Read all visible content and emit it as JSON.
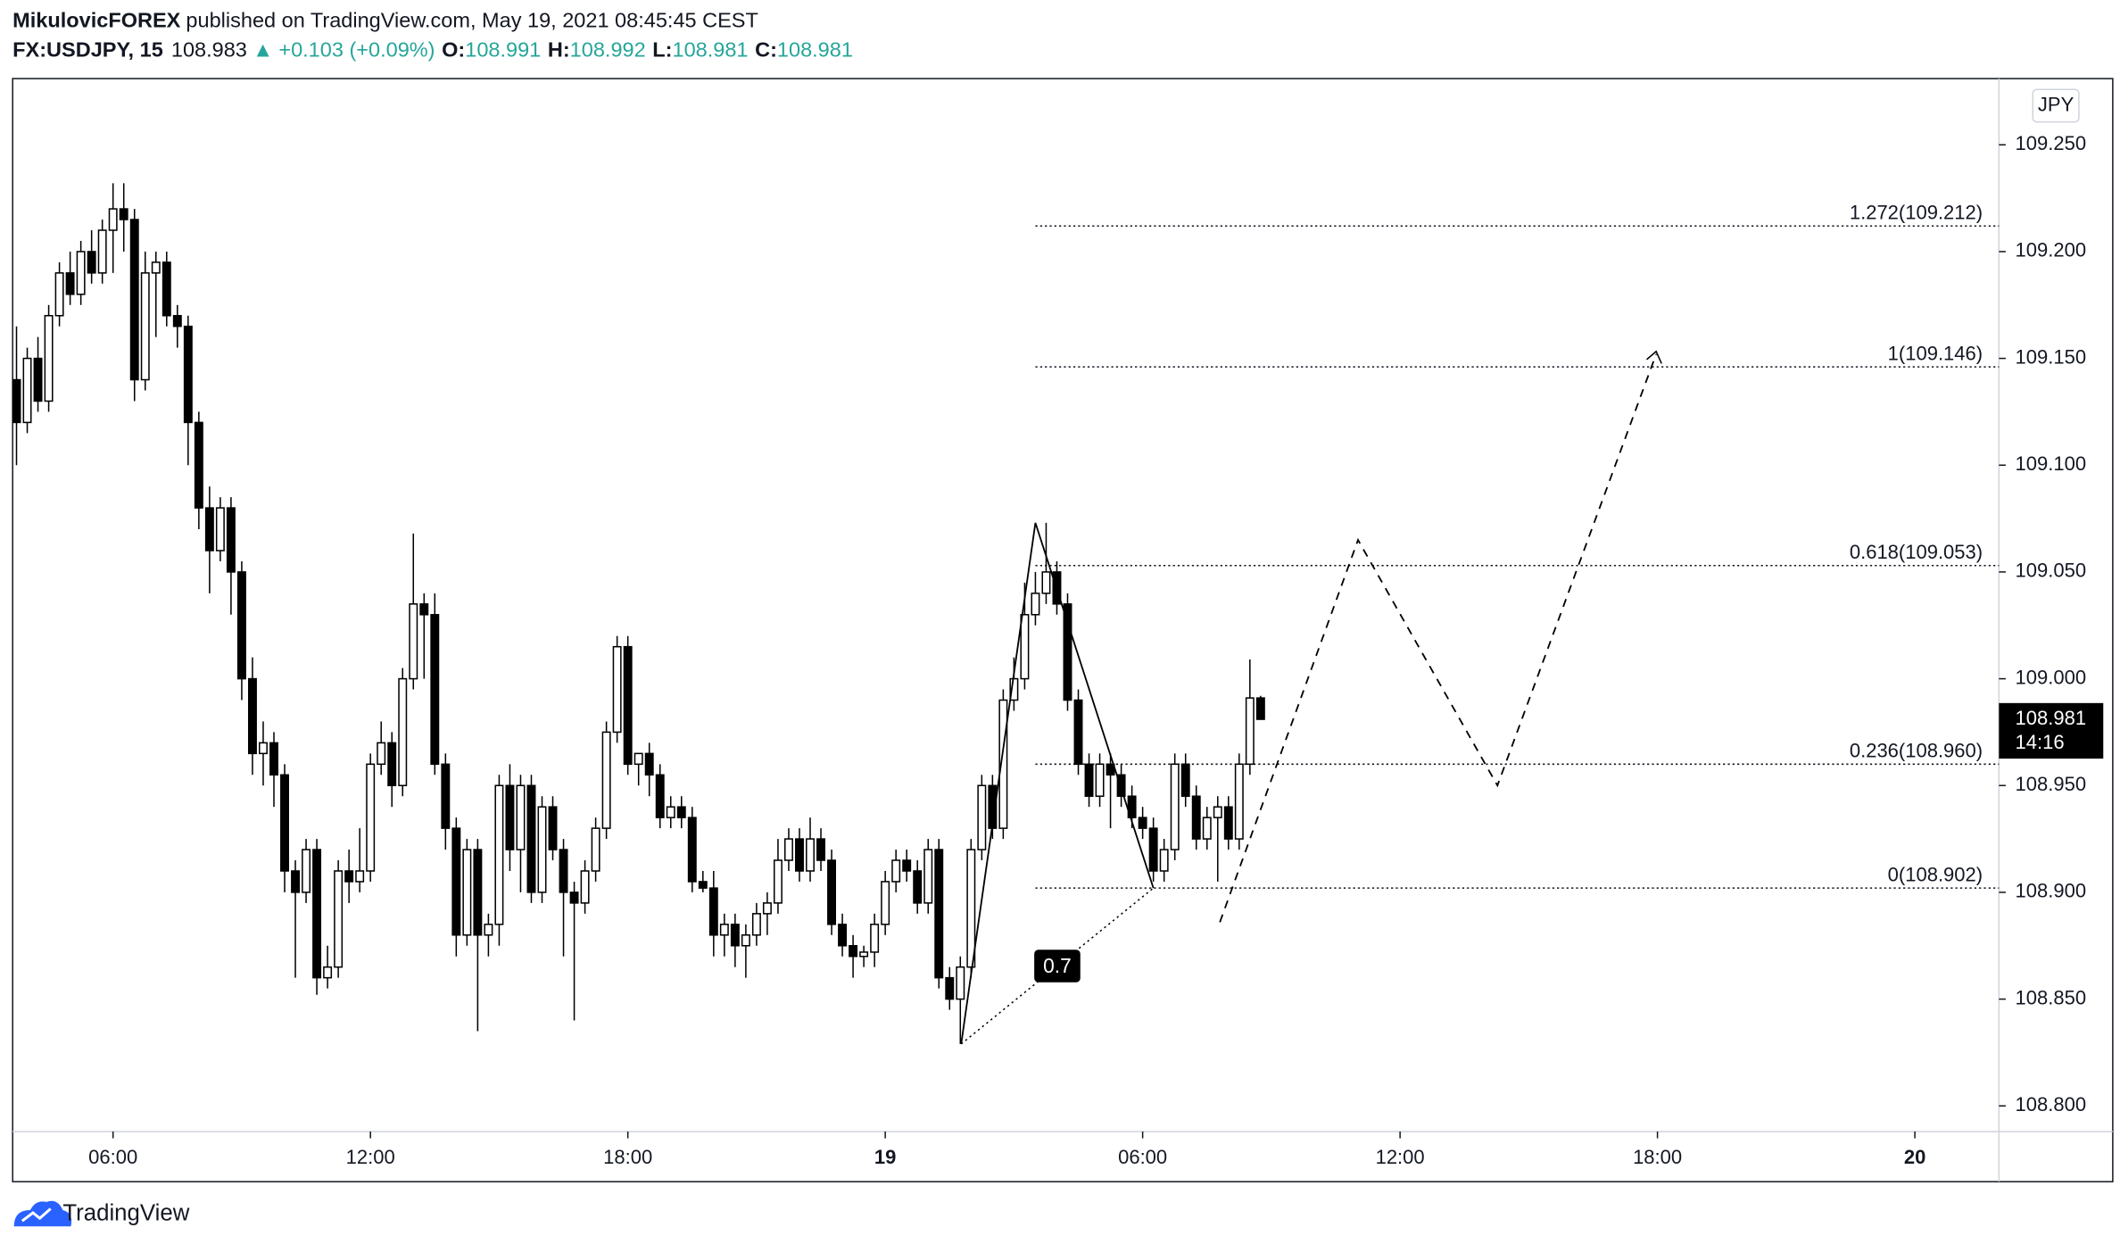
{
  "header": {
    "author": "MikulovicFOREX",
    "published": "published on TradingView.com, May 19, 2021 08:45:45 CEST",
    "symbol": "FX:USDJPY, 15",
    "price": "108.983",
    "arrow": "▲",
    "change": "+0.103 (+0.09%)",
    "ohlc": [
      {
        "label": "O:",
        "value": "108.991"
      },
      {
        "label": "H:",
        "value": "108.992"
      },
      {
        "label": "L:",
        "value": "108.981"
      },
      {
        "label": "C:",
        "value": "108.981"
      }
    ]
  },
  "chart_data": {
    "type": "candlestick",
    "currency": "JPY",
    "footer": "TradingView",
    "xlim": [
      3.66,
      49.96
    ],
    "ylim": [
      108.788,
      109.281
    ],
    "xticks": [
      {
        "value": 6,
        "label": "06:00"
      },
      {
        "value": 12,
        "label": "12:00"
      },
      {
        "value": 18,
        "label": "18:00"
      },
      {
        "value": 24,
        "label": "19"
      },
      {
        "value": 30,
        "label": "06:00"
      },
      {
        "value": 36,
        "label": "12:00"
      },
      {
        "value": 42,
        "label": "18:00"
      },
      {
        "value": 48,
        "label": "20"
      }
    ],
    "yticks": [
      {
        "value": 108.8,
        "label": "108.800"
      },
      {
        "value": 108.85,
        "label": "108.850"
      },
      {
        "value": 108.9,
        "label": "108.900"
      },
      {
        "value": 108.95,
        "label": "108.950"
      },
      {
        "value": 109,
        "label": "109.000"
      },
      {
        "value": 109.05,
        "label": "109.050"
      },
      {
        "value": 109.1,
        "label": "109.100"
      },
      {
        "value": 109.15,
        "label": "109.150"
      },
      {
        "value": 109.2,
        "label": "109.200"
      },
      {
        "value": 109.25,
        "label": "109.250"
      }
    ],
    "last_price": 108.981,
    "countdown": "14:16",
    "fib_levels": [
      {
        "value": 109.212,
        "label": "1.272(109.212)"
      },
      {
        "value": 109.146,
        "label": "1(109.146)"
      },
      {
        "value": 109.053,
        "label": "0.618(109.053)"
      },
      {
        "value": 108.96,
        "label": "0.236(108.960)"
      },
      {
        "value": 108.902,
        "label": "0(108.902)"
      }
    ],
    "pattern": {
      "ratio_label": "0.7",
      "points": [
        {
          "x": 25.77,
          "y": 108.829
        },
        {
          "x": 27.5,
          "y": 109.073
        },
        {
          "x": 30.25,
          "y": 108.902
        }
      ]
    },
    "projection": [
      {
        "x": 31.8,
        "y": 108.886
      },
      {
        "x": 35.02,
        "y": 109.065
      },
      {
        "x": 38.27,
        "y": 108.95
      },
      {
        "x": 41.97,
        "y": 109.152
      }
    ],
    "x": [
      3.75,
      4,
      4.25,
      4.5,
      4.75,
      5,
      5.25,
      5.5,
      5.75,
      6,
      6.25,
      6.5,
      6.75,
      7,
      7.25,
      7.5,
      7.75,
      8,
      8.25,
      8.5,
      8.75,
      9,
      9.25,
      9.5,
      9.75,
      10,
      10.25,
      10.5,
      10.75,
      11,
      11.25,
      11.5,
      11.75,
      12,
      12.25,
      12.5,
      12.75,
      13,
      13.25,
      13.5,
      13.75,
      14,
      14.25,
      14.5,
      14.75,
      15,
      15.25,
      15.5,
      15.75,
      16,
      16.25,
      16.5,
      16.75,
      17,
      17.25,
      17.5,
      17.75,
      18,
      18.25,
      18.5,
      18.75,
      19,
      19.25,
      19.5,
      19.75,
      20,
      20.25,
      20.5,
      20.75,
      21,
      21.25,
      21.5,
      21.75,
      22,
      22.25,
      22.5,
      22.75,
      23,
      23.25,
      23.5,
      23.75,
      24,
      24.25,
      24.5,
      24.75,
      25,
      25.25,
      25.5,
      25.75,
      26,
      26.25,
      26.5,
      26.75,
      27,
      27.25,
      27.5,
      27.75,
      28,
      28.25,
      28.5,
      28.75,
      29,
      29.25,
      29.5,
      29.75,
      30,
      30.25,
      30.5,
      30.75,
      31,
      31.25,
      31.5,
      31.75,
      32,
      32.25,
      32.5,
      32.75
    ],
    "candles": [
      [
        109.14,
        109.165,
        109.1,
        109.12
      ],
      [
        109.12,
        109.155,
        109.115,
        109.15
      ],
      [
        109.15,
        109.16,
        109.125,
        109.13
      ],
      [
        109.13,
        109.175,
        109.125,
        109.17
      ],
      [
        109.17,
        109.195,
        109.165,
        109.19
      ],
      [
        109.19,
        109.2,
        109.175,
        109.18
      ],
      [
        109.18,
        109.205,
        109.175,
        109.2
      ],
      [
        109.2,
        109.21,
        109.185,
        109.19
      ],
      [
        109.19,
        109.215,
        109.185,
        109.21
      ],
      [
        109.21,
        109.232,
        109.19,
        109.22
      ],
      [
        109.22,
        109.232,
        109.2,
        109.215
      ],
      [
        109.215,
        109.22,
        109.13,
        109.14
      ],
      [
        109.14,
        109.2,
        109.135,
        109.19
      ],
      [
        109.19,
        109.2,
        109.16,
        109.195
      ],
      [
        109.195,
        109.2,
        109.165,
        109.17
      ],
      [
        109.17,
        109.175,
        109.155,
        109.165
      ],
      [
        109.165,
        109.17,
        109.1,
        109.12
      ],
      [
        109.12,
        109.125,
        109.07,
        109.08
      ],
      [
        109.08,
        109.09,
        109.04,
        109.06
      ],
      [
        109.06,
        109.085,
        109.055,
        109.08
      ],
      [
        109.08,
        109.085,
        109.03,
        109.05
      ],
      [
        109.05,
        109.055,
        108.99,
        109
      ],
      [
        109,
        109.01,
        108.955,
        108.965
      ],
      [
        108.965,
        108.98,
        108.95,
        108.97
      ],
      [
        108.97,
        108.975,
        108.94,
        108.955
      ],
      [
        108.955,
        108.96,
        108.9,
        108.91
      ],
      [
        108.91,
        108.915,
        108.86,
        108.9
      ],
      [
        108.9,
        108.925,
        108.895,
        108.92
      ],
      [
        108.92,
        108.925,
        108.852,
        108.86
      ],
      [
        108.86,
        108.875,
        108.855,
        108.865
      ],
      [
        108.865,
        108.915,
        108.86,
        108.91
      ],
      [
        108.91,
        108.92,
        108.895,
        108.905
      ],
      [
        108.905,
        108.93,
        108.9,
        108.91
      ],
      [
        108.91,
        108.965,
        108.905,
        108.96
      ],
      [
        108.96,
        108.98,
        108.955,
        108.97
      ],
      [
        108.97,
        108.975,
        108.94,
        108.95
      ],
      [
        108.95,
        109.005,
        108.945,
        109
      ],
      [
        109,
        109.068,
        108.995,
        109.035
      ],
      [
        109.035,
        109.04,
        109,
        109.03
      ],
      [
        109.03,
        109.04,
        108.955,
        108.96
      ],
      [
        108.96,
        108.965,
        108.92,
        108.93
      ],
      [
        108.93,
        108.935,
        108.87,
        108.88
      ],
      [
        108.88,
        108.925,
        108.875,
        108.92
      ],
      [
        108.92,
        108.925,
        108.835,
        108.88
      ],
      [
        108.88,
        108.89,
        108.87,
        108.885
      ],
      [
        108.885,
        108.955,
        108.875,
        108.95
      ],
      [
        108.95,
        108.96,
        108.91,
        108.92
      ],
      [
        108.92,
        108.955,
        108.9,
        108.95
      ],
      [
        108.95,
        108.955,
        108.895,
        108.9
      ],
      [
        108.9,
        108.945,
        108.895,
        108.94
      ],
      [
        108.94,
        108.945,
        108.915,
        108.92
      ],
      [
        108.92,
        108.925,
        108.87,
        108.9
      ],
      [
        108.9,
        108.905,
        108.84,
        108.895
      ],
      [
        108.895,
        108.915,
        108.89,
        108.91
      ],
      [
        108.91,
        108.935,
        108.905,
        108.93
      ],
      [
        108.93,
        108.98,
        108.925,
        108.975
      ],
      [
        108.975,
        109.02,
        108.97,
        109.015
      ],
      [
        109.015,
        109.02,
        108.955,
        108.96
      ],
      [
        108.96,
        108.965,
        108.95,
        108.965
      ],
      [
        108.965,
        108.97,
        108.945,
        108.955
      ],
      [
        108.955,
        108.96,
        108.93,
        108.935
      ],
      [
        108.935,
        108.945,
        108.93,
        108.94
      ],
      [
        108.94,
        108.945,
        108.93,
        108.935
      ],
      [
        108.935,
        108.94,
        108.9,
        108.905
      ],
      [
        108.905,
        108.91,
        108.9,
        108.902
      ],
      [
        108.902,
        108.91,
        108.87,
        108.88
      ],
      [
        108.88,
        108.89,
        108.87,
        108.885
      ],
      [
        108.885,
        108.89,
        108.865,
        108.875
      ],
      [
        108.875,
        108.885,
        108.86,
        108.88
      ],
      [
        108.88,
        108.895,
        108.875,
        108.89
      ],
      [
        108.89,
        108.9,
        108.88,
        108.895
      ],
      [
        108.895,
        108.925,
        108.89,
        108.915
      ],
      [
        108.915,
        108.93,
        108.91,
        108.925
      ],
      [
        108.925,
        108.93,
        108.905,
        108.91
      ],
      [
        108.91,
        108.935,
        108.905,
        108.925
      ],
      [
        108.925,
        108.93,
        108.91,
        108.915
      ],
      [
        108.915,
        108.92,
        108.88,
        108.885
      ],
      [
        108.885,
        108.89,
        108.87,
        108.875
      ],
      [
        108.875,
        108.88,
        108.86,
        108.87
      ],
      [
        108.87,
        108.875,
        108.865,
        108.872
      ],
      [
        108.872,
        108.89,
        108.865,
        108.885
      ],
      [
        108.885,
        108.91,
        108.88,
        108.905
      ],
      [
        108.905,
        108.92,
        108.9,
        108.915
      ],
      [
        108.915,
        108.92,
        108.905,
        108.91
      ],
      [
        108.91,
        108.915,
        108.89,
        108.895
      ],
      [
        108.895,
        108.925,
        108.89,
        108.92
      ],
      [
        108.92,
        108.925,
        108.855,
        108.86
      ],
      [
        108.86,
        108.865,
        108.845,
        108.85
      ],
      [
        108.85,
        108.87,
        108.829,
        108.865
      ],
      [
        108.865,
        108.925,
        108.86,
        108.92
      ],
      [
        108.92,
        108.955,
        108.915,
        108.95
      ],
      [
        108.95,
        108.955,
        108.925,
        108.93
      ],
      [
        108.93,
        108.995,
        108.925,
        108.99
      ],
      [
        108.99,
        109.01,
        108.985,
        109
      ],
      [
        109,
        109.045,
        108.995,
        109.03
      ],
      [
        109.03,
        109.05,
        109.025,
        109.04
      ],
      [
        109.04,
        109.073,
        109.035,
        109.05
      ],
      [
        109.05,
        109.055,
        109.03,
        109.035
      ],
      [
        109.035,
        109.04,
        108.985,
        108.99
      ],
      [
        108.99,
        108.995,
        108.955,
        108.96
      ],
      [
        108.96,
        108.965,
        108.94,
        108.945
      ],
      [
        108.945,
        108.965,
        108.94,
        108.96
      ],
      [
        108.96,
        108.965,
        108.93,
        108.955
      ],
      [
        108.955,
        108.96,
        108.94,
        108.945
      ],
      [
        108.945,
        108.95,
        108.93,
        108.935
      ],
      [
        108.935,
        108.94,
        108.925,
        108.93
      ],
      [
        108.93,
        108.935,
        108.905,
        108.91
      ],
      [
        108.91,
        108.925,
        108.905,
        108.92
      ],
      [
        108.92,
        108.965,
        108.915,
        108.96
      ],
      [
        108.96,
        108.965,
        108.94,
        108.945
      ],
      [
        108.945,
        108.95,
        108.92,
        108.925
      ],
      [
        108.925,
        108.94,
        108.92,
        108.935
      ],
      [
        108.935,
        108.945,
        108.905,
        108.94
      ],
      [
        108.94,
        108.945,
        108.92,
        108.925
      ],
      [
        108.925,
        108.965,
        108.92,
        108.96
      ],
      [
        108.96,
        109.009,
        108.955,
        108.991
      ],
      [
        108.991,
        108.992,
        108.981,
        108.981
      ]
    ]
  }
}
